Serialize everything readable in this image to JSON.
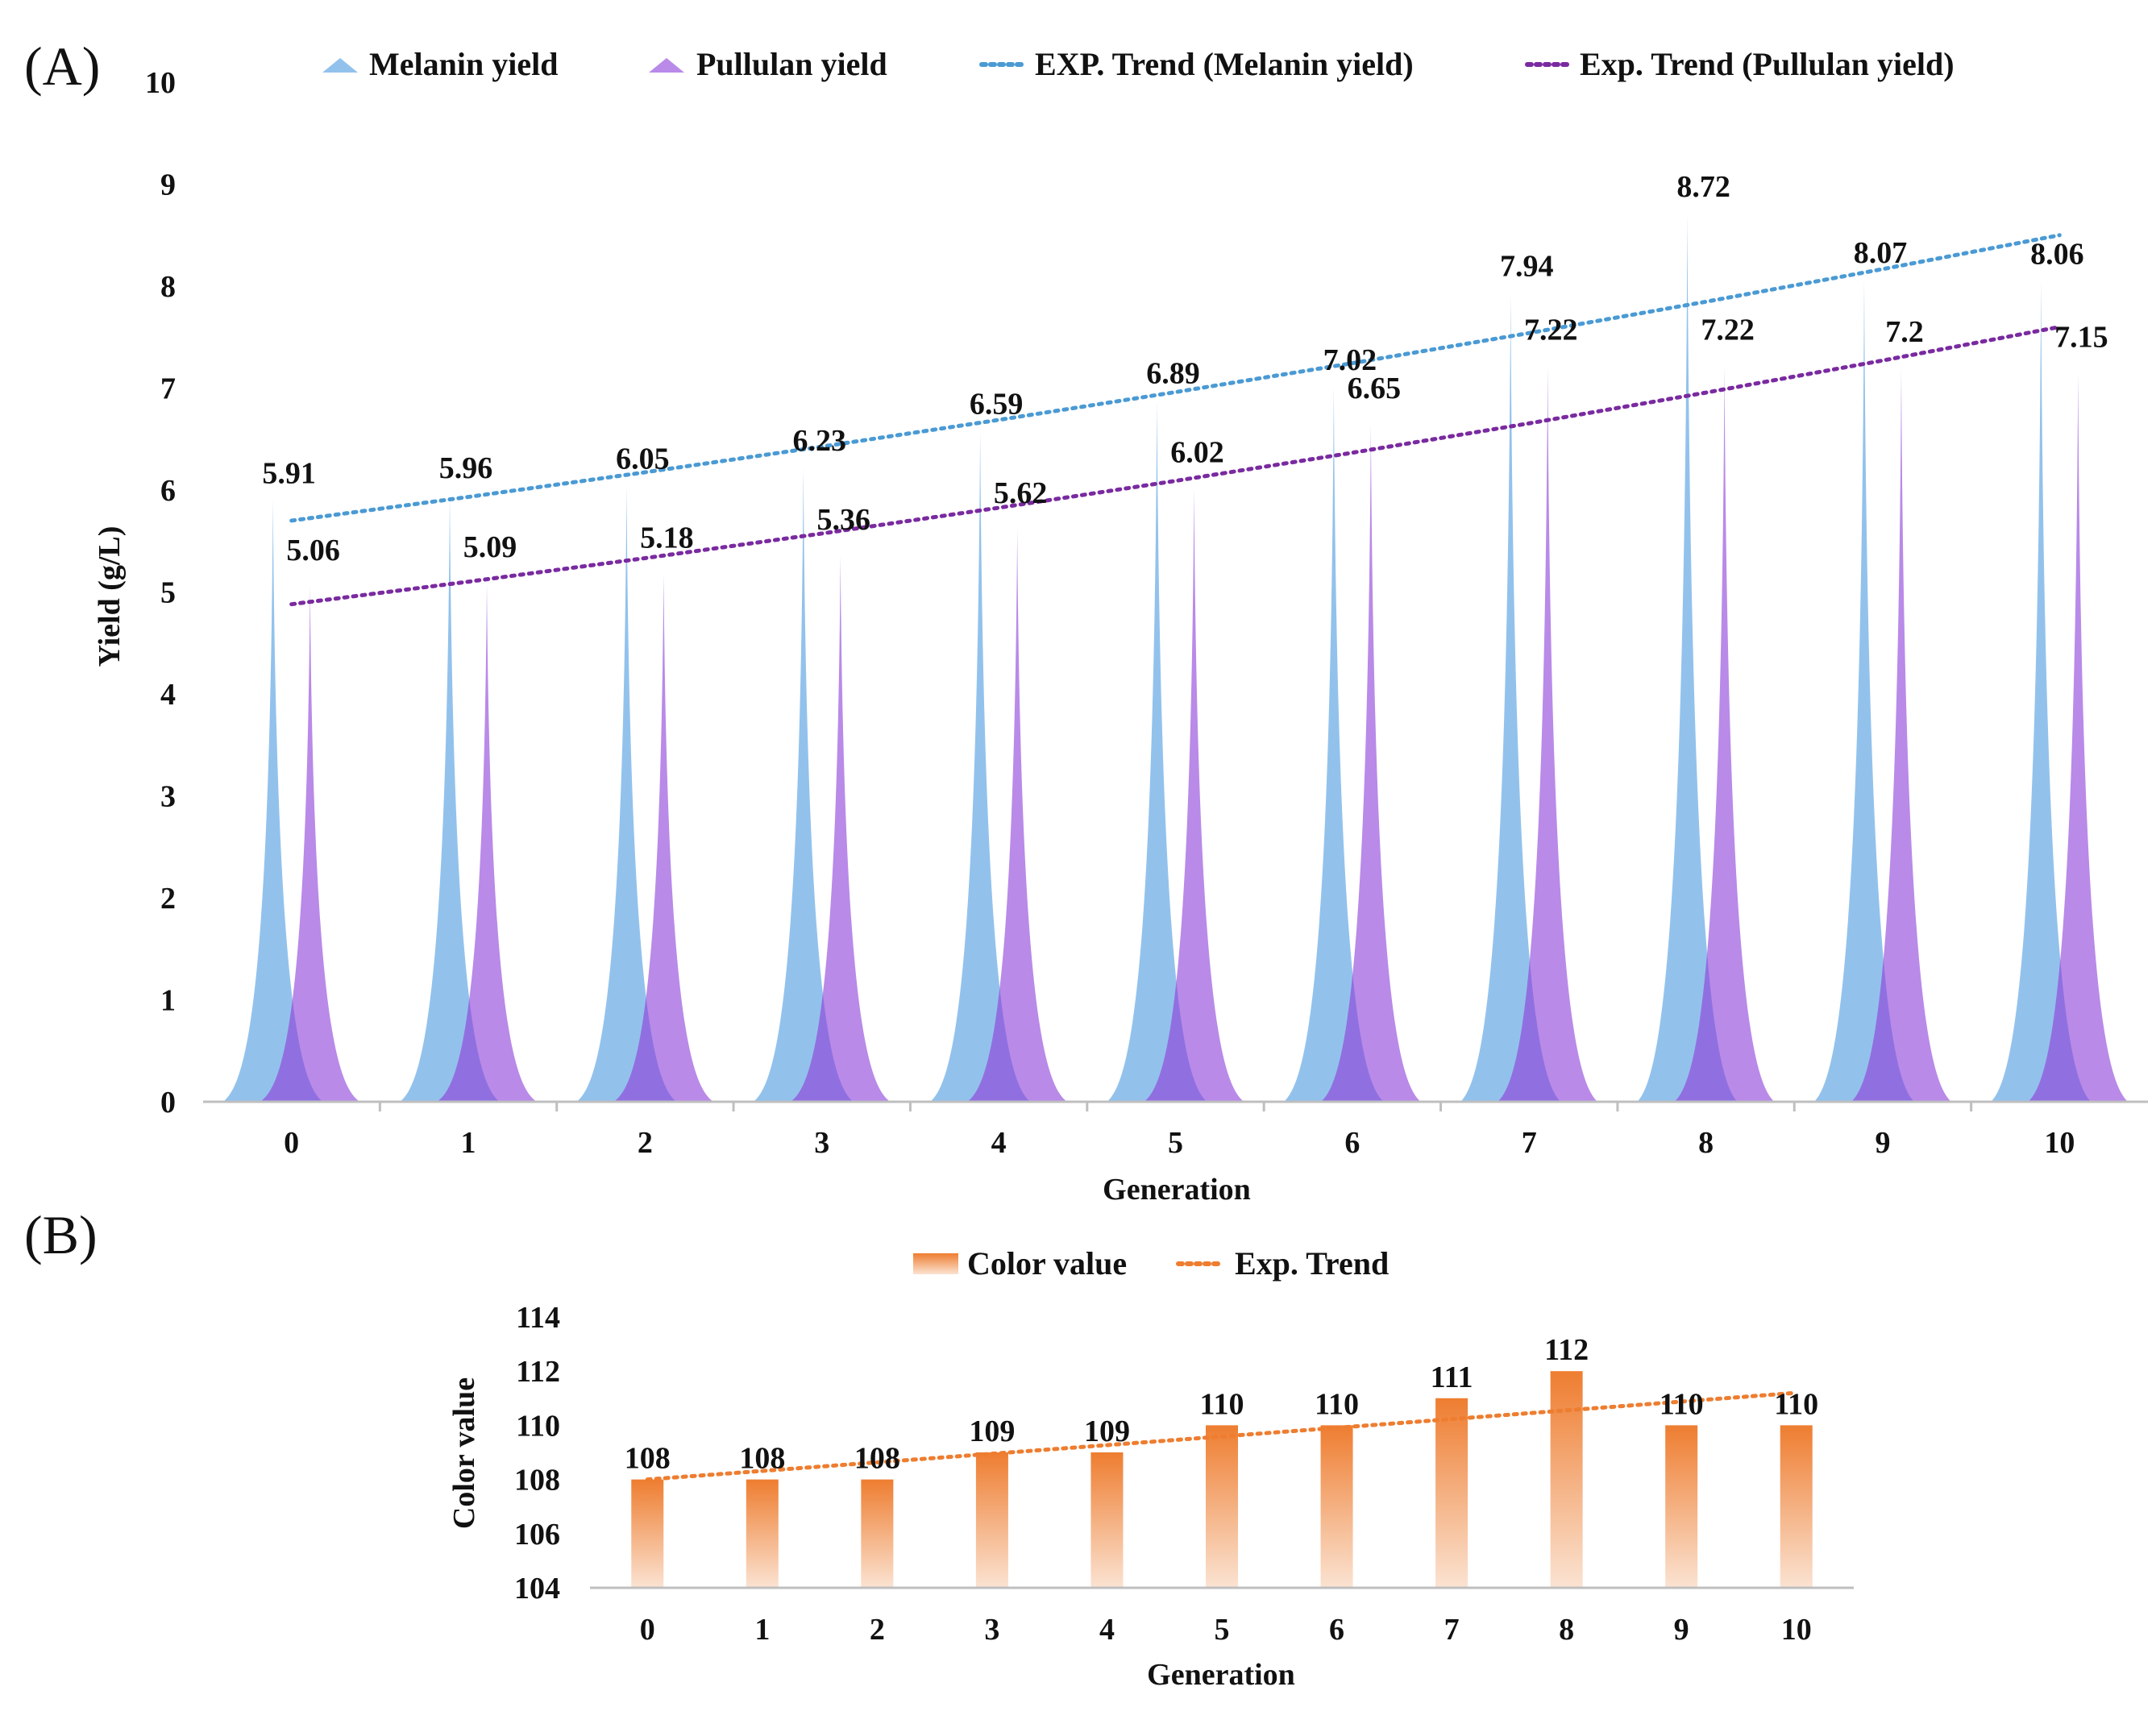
{
  "colors": {
    "melanin": "#92c2ec",
    "pullulan": "#b98ae8",
    "overlap": "#9070e0",
    "melanin_trend": "#4a9ad4",
    "pullulan_trend": "#7a2aa0",
    "bar": "#ee7d30",
    "bar_fade": "#fbe3d2",
    "axis": "#bfbfbf"
  },
  "chart_data": [
    {
      "panel_label": "(A)",
      "type": "area",
      "mark_shape": "spike",
      "categories": [
        "0",
        "1",
        "2",
        "3",
        "4",
        "5",
        "6",
        "7",
        "8",
        "9",
        "10"
      ],
      "series": [
        {
          "name": "Melanin yield",
          "values": [
            5.91,
            5.96,
            6.05,
            6.23,
            6.59,
            6.89,
            7.02,
            7.94,
            8.72,
            8.07,
            8.06
          ],
          "labels": [
            "5.91",
            "5.96",
            "6.05",
            "6.23",
            "6.59",
            "6.89",
            "7.02",
            "7.94",
            "8.72",
            "8.07",
            "8.06"
          ]
        },
        {
          "name": "Pullulan yield",
          "values": [
            5.06,
            5.09,
            5.18,
            5.36,
            5.62,
            6.02,
            6.65,
            7.22,
            7.22,
            7.2,
            7.15
          ],
          "labels": [
            "5.06",
            "5.09",
            "5.18",
            "5.36",
            "5.62",
            "6.02",
            "6.65",
            "7.22",
            "7.22",
            "7.2",
            "7.15"
          ]
        }
      ],
      "trendlines": [
        {
          "name": "EXP. Trend (Melanin yield)",
          "type": "exponential",
          "start": 5.7,
          "end": 8.5
        },
        {
          "name": "Exp. Trend (Pullulan yield)",
          "type": "exponential",
          "start": 4.88,
          "end": 7.6
        }
      ],
      "legend": [
        "Melanin yield",
        "Pullulan yield",
        "EXP. Trend (Melanin yield)",
        "Exp. Trend (Pullulan yield)"
      ],
      "legend_position": "top",
      "xlabel": "Generation",
      "ylabel": "Yield (g/L)",
      "ylim": [
        0,
        10
      ],
      "yticks": [
        "0",
        "1",
        "2",
        "3",
        "4",
        "5",
        "6",
        "7",
        "8",
        "9",
        "10"
      ],
      "grid": false
    },
    {
      "panel_label": "(B)",
      "type": "bar",
      "categories": [
        "0",
        "1",
        "2",
        "3",
        "4",
        "5",
        "6",
        "7",
        "8",
        "9",
        "10"
      ],
      "series": [
        {
          "name": "Color value",
          "values": [
            108,
            108,
            108,
            109,
            109,
            110,
            110,
            111,
            112,
            110,
            110
          ],
          "labels": [
            "108",
            "108",
            "108",
            "109",
            "109",
            "110",
            "110",
            "111",
            "112",
            "110",
            "110"
          ]
        }
      ],
      "trendlines": [
        {
          "name": "Exp. Trend",
          "type": "exponential",
          "start": 108.0,
          "end": 111.2
        }
      ],
      "legend": [
        "Color value",
        "Exp. Trend"
      ],
      "legend_position": "top",
      "xlabel": "Generation",
      "ylabel": "Color value",
      "ylim": [
        104,
        114
      ],
      "yticks": [
        "104",
        "106",
        "108",
        "110",
        "112",
        "114"
      ],
      "grid": false
    }
  ]
}
